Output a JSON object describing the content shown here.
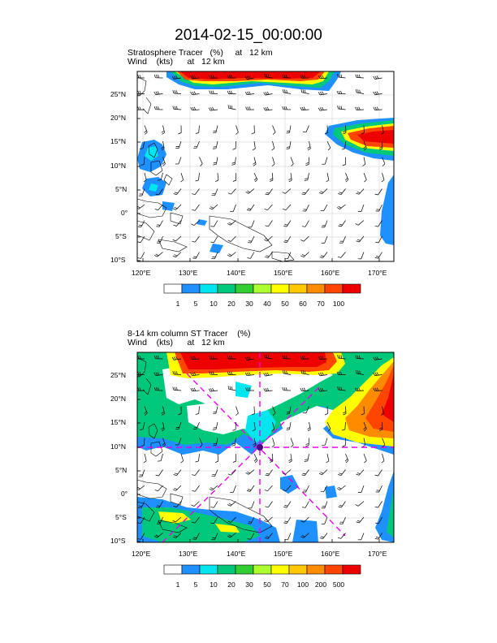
{
  "title": "2014-02-15_00:00:00",
  "panels": [
    {
      "line1": "Stratosphere Tracer   (%)     at   12 km",
      "line2": "Wind    (kts)      at   12 km",
      "colorbar": {
        "labels": [
          "1",
          "5",
          "10",
          "20",
          "30",
          "40",
          "50",
          "60",
          "70",
          "100"
        ],
        "colors": [
          "#ffffff",
          "#1e90ff",
          "#00e5ee",
          "#00c87a",
          "#32cd32",
          "#adff2f",
          "#ffff00",
          "#ffc800",
          "#ff8c00",
          "#ff4500",
          "#ee0000"
        ]
      }
    },
    {
      "line1": "8-14 km column ST Tracer    (%)",
      "line2": "Wind    (kts)      at   12 km",
      "colorbar": {
        "labels": [
          "1",
          "5",
          "10",
          "20",
          "30",
          "50",
          "70",
          "100",
          "200",
          "500"
        ],
        "colors": [
          "#ffffff",
          "#1e90ff",
          "#00e5ee",
          "#00c87a",
          "#32cd32",
          "#adff2f",
          "#ffff00",
          "#ffc800",
          "#ff8c00",
          "#ff4500",
          "#ee0000"
        ]
      }
    }
  ],
  "axes": {
    "lat_labels": [
      "25°N",
      "20°N",
      "15°N",
      "10°N",
      "5°N",
      "0°",
      "5°S",
      "10°S"
    ],
    "lon_labels": [
      "120°E",
      "130°E",
      "140°E",
      "150°E",
      "160°E",
      "170°E"
    ]
  }
}
